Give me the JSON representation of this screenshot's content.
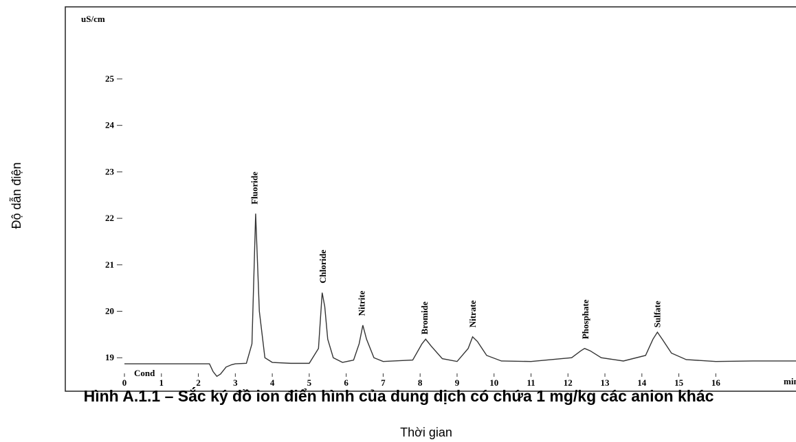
{
  "chart_data": {
    "type": "line",
    "y_unit": "uS/cm",
    "x_unit": "min",
    "trace_label": "Cond",
    "y_axis_label": "Độ dẫn điện",
    "x_axis_label": "Thời gian",
    "caption": "Hình A.1.1 – Sắc ký đồ ion điển hình của dung dịch có chứa 1 mg/kg các anion khác",
    "xlim": [
      -1.6,
      18.3
    ],
    "ylim": [
      18.28,
      26.55
    ],
    "xticks": [
      0,
      1,
      2,
      3,
      4,
      5,
      6,
      7,
      8,
      9,
      10,
      11,
      12,
      13,
      14,
      15,
      16
    ],
    "yticks": [
      19,
      20,
      21,
      22,
      23,
      24,
      25
    ],
    "x": [
      0,
      1,
      2,
      2.3,
      2.4,
      2.5,
      2.6,
      2.75,
      2.9,
      3,
      3.3,
      3.45,
      3.55,
      3.65,
      3.8,
      4.0,
      4.5,
      5.0,
      5.25,
      5.35,
      5.42,
      5.5,
      5.65,
      5.9,
      6.2,
      6.35,
      6.45,
      6.55,
      6.75,
      7.0,
      7.8,
      8.05,
      8.15,
      8.3,
      8.6,
      9.0,
      9.3,
      9.42,
      9.55,
      9.8,
      10.2,
      11,
      12.1,
      12.35,
      12.45,
      12.6,
      12.9,
      13.5,
      14.1,
      14.3,
      14.42,
      14.55,
      14.8,
      15.2,
      16,
      17,
      18.3
    ],
    "series": [
      {
        "color": "#333333",
        "values": [
          18.87,
          18.87,
          18.87,
          18.87,
          18.7,
          18.6,
          18.65,
          18.8,
          18.85,
          18.87,
          18.88,
          19.3,
          22.1,
          20.0,
          19.0,
          18.9,
          18.88,
          18.88,
          19.2,
          20.4,
          20.1,
          19.4,
          19.0,
          18.9,
          18.95,
          19.3,
          19.7,
          19.4,
          19.0,
          18.92,
          18.95,
          19.3,
          19.4,
          19.25,
          18.98,
          18.92,
          19.2,
          19.45,
          19.35,
          19.05,
          18.93,
          18.92,
          19.0,
          19.15,
          19.2,
          19.15,
          19.0,
          18.93,
          19.05,
          19.4,
          19.55,
          19.4,
          19.1,
          18.96,
          18.92,
          18.93,
          18.93
        ]
      }
    ],
    "annotations": [
      {
        "text": "Fluoride",
        "x": 3.6,
        "y": 22.3
      },
      {
        "text": "Chloride",
        "x": 5.45,
        "y": 20.6
      },
      {
        "text": "Nitrite",
        "x": 6.5,
        "y": 19.9
      },
      {
        "text": "Bromide",
        "x": 8.2,
        "y": 19.5
      },
      {
        "text": "Nitrate",
        "x": 9.5,
        "y": 19.65
      },
      {
        "text": "Phosphate",
        "x": 12.55,
        "y": 19.4
      },
      {
        "text": "Sulfate",
        "x": 14.5,
        "y": 19.65
      }
    ]
  }
}
